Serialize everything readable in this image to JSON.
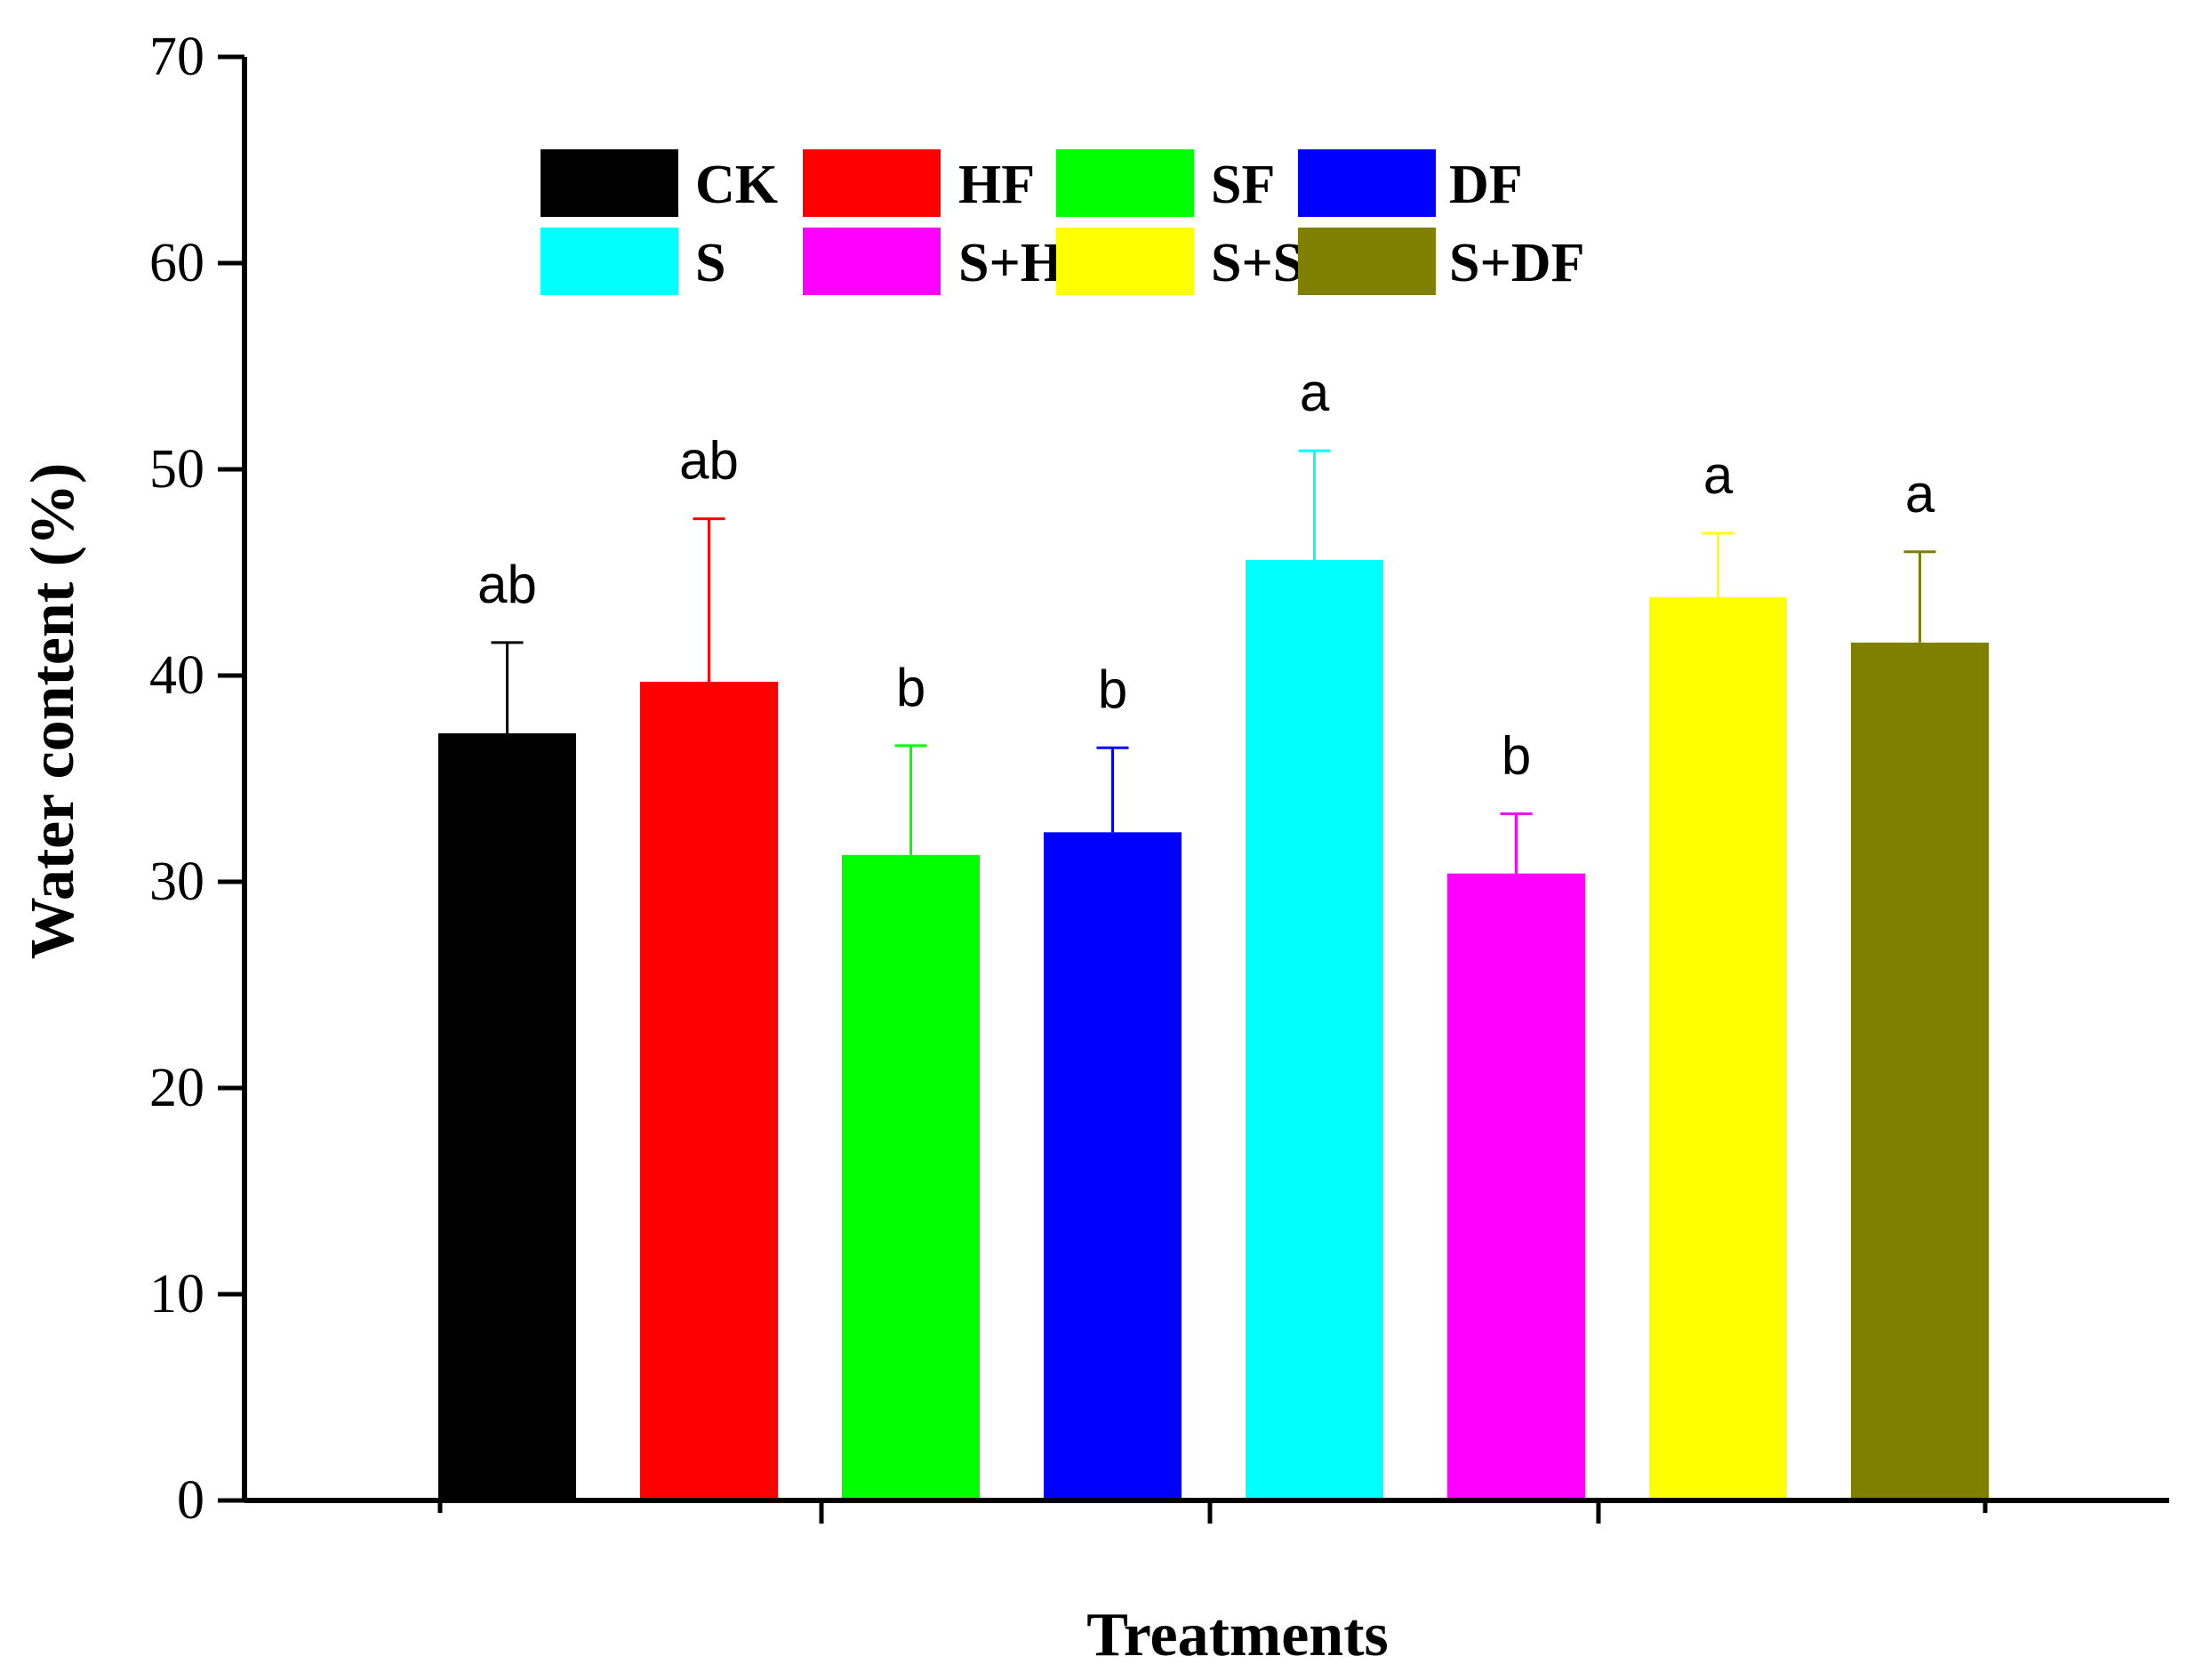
{
  "chart_data": {
    "type": "bar",
    "title": "",
    "xlabel": "Treatments",
    "ylabel": "Water content (%)",
    "ylim": [
      0,
      70
    ],
    "yticks": [
      0,
      10,
      20,
      30,
      40,
      50,
      60,
      70
    ],
    "grid": false,
    "legend_position": "top",
    "categories": [
      "CK",
      "HF",
      "SF",
      "DF",
      "S",
      "S+HF",
      "S+SF",
      "S+DF"
    ],
    "values": [
      37.2,
      39.7,
      31.3,
      32.4,
      45.6,
      30.4,
      43.8,
      41.6
    ],
    "errors": [
      4.4,
      7.9,
      5.3,
      4.1,
      5.3,
      2.9,
      3.1,
      4.4
    ],
    "significance": [
      "ab",
      "ab",
      "b",
      "b",
      "a",
      "b",
      "a",
      "a"
    ],
    "colors": [
      "#000000",
      "#ff0000",
      "#00ff00",
      "#0000ff",
      "#00ffff",
      "#ff00ff",
      "#ffff00",
      "#808000"
    ]
  }
}
